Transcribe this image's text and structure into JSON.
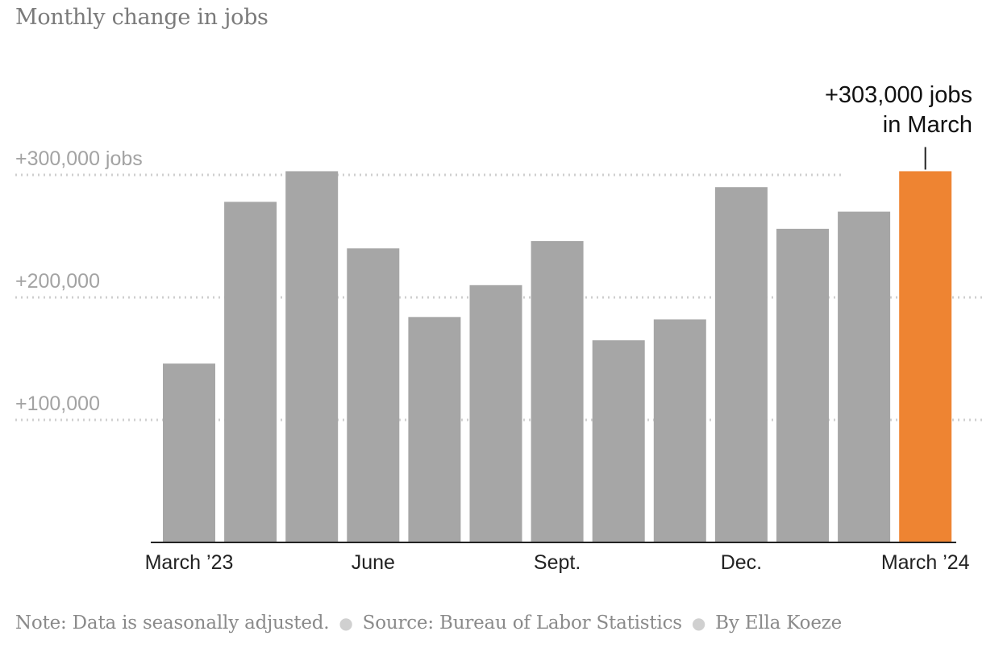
{
  "chart_data": {
    "type": "bar",
    "title": "Monthly change in jobs",
    "ylim": [
      0,
      310000
    ],
    "grid": true,
    "values": [
      146000,
      278000,
      303000,
      240000,
      184000,
      210000,
      246000,
      165000,
      182000,
      290000,
      256000,
      270000,
      303000
    ],
    "highlight_index": 12,
    "bar_color": "#a6a6a6",
    "highlight_color": "#ee8432",
    "y_ticks": [
      {
        "value": 100000,
        "label": "+100,000"
      },
      {
        "value": 200000,
        "label": "+200,000"
      },
      {
        "value": 300000,
        "label": "+300,000 jobs"
      }
    ],
    "x_tick_labels": [
      {
        "index": 0,
        "label": "March ’23"
      },
      {
        "index": 3,
        "label": "June"
      },
      {
        "index": 6,
        "label": "Sept."
      },
      {
        "index": 9,
        "label": "Dec."
      },
      {
        "index": 12,
        "label": "March ’24"
      }
    ],
    "annotation": {
      "index": 12,
      "lines": [
        "+303,000 jobs",
        "in March"
      ]
    }
  },
  "footer": {
    "note": "Note: Data is seasonally adjusted.",
    "source": "Source: Bureau of Labor Statistics",
    "byline": "By Ella Koeze"
  }
}
